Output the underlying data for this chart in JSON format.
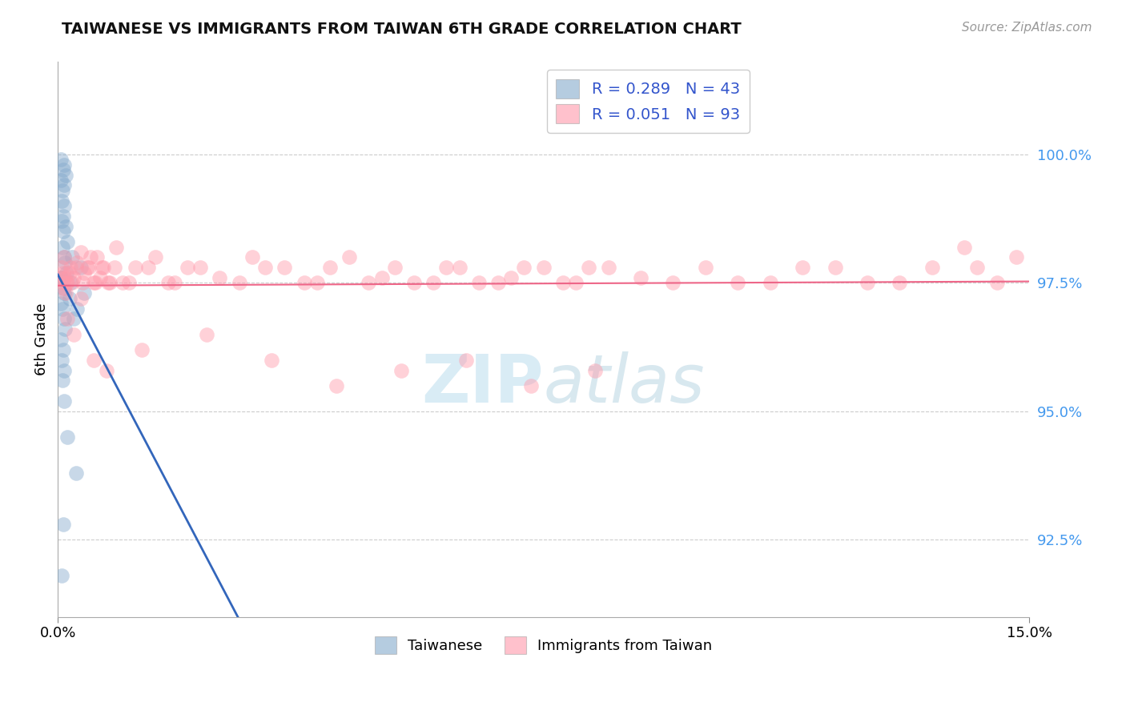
{
  "title": "TAIWANESE VS IMMIGRANTS FROM TAIWAN 6TH GRADE CORRELATION CHART",
  "source": "Source: ZipAtlas.com",
  "ylabel": "6th Grade",
  "xlim": [
    0.0,
    15.0
  ],
  "ylim": [
    91.0,
    101.8
  ],
  "yticks": [
    92.5,
    95.0,
    97.5,
    100.0
  ],
  "ytick_labels": [
    "92.5%",
    "95.0%",
    "97.5%",
    "100.0%"
  ],
  "xticks": [
    0.0,
    15.0
  ],
  "xtick_labels": [
    "0.0%",
    "15.0%"
  ],
  "legend_label1": "Taiwanese",
  "legend_label2": "Immigrants from Taiwan",
  "blue_color": "#85AACC",
  "pink_color": "#FF99AA",
  "blue_line_color": "#3366BB",
  "pink_line_color": "#EE6688",
  "blue_scatter_x": [
    0.05,
    0.08,
    0.1,
    0.12,
    0.05,
    0.07,
    0.09,
    0.06,
    0.1,
    0.08,
    0.06,
    0.08,
    0.12,
    0.15,
    0.07,
    0.09,
    0.11,
    0.13,
    0.06,
    0.08,
    0.1,
    0.05,
    0.07,
    0.09,
    0.11,
    0.05,
    0.08,
    0.06,
    0.09,
    0.07,
    0.05,
    0.2,
    0.35,
    0.22,
    0.18,
    0.3,
    0.4,
    0.25,
    0.28,
    0.15,
    0.1,
    0.08,
    0.06
  ],
  "blue_scatter_y": [
    99.9,
    99.7,
    99.8,
    99.6,
    99.5,
    99.3,
    99.4,
    99.1,
    99.0,
    98.8,
    98.7,
    98.5,
    98.6,
    98.3,
    98.2,
    98.0,
    97.9,
    97.7,
    97.6,
    97.4,
    97.3,
    97.1,
    97.0,
    96.8,
    96.6,
    96.4,
    96.2,
    96.0,
    95.8,
    95.6,
    97.6,
    97.5,
    97.8,
    98.0,
    97.2,
    97.0,
    97.3,
    96.8,
    93.8,
    94.5,
    95.2,
    92.8,
    91.8
  ],
  "pink_scatter_x": [
    0.05,
    0.07,
    0.1,
    0.12,
    0.15,
    0.08,
    0.06,
    0.09,
    0.11,
    0.13,
    0.2,
    0.25,
    0.3,
    0.35,
    0.4,
    0.45,
    0.5,
    0.55,
    0.6,
    0.65,
    0.7,
    0.8,
    0.9,
    1.0,
    1.2,
    1.5,
    1.8,
    2.0,
    2.5,
    3.0,
    3.5,
    4.0,
    4.5,
    5.0,
    5.5,
    6.0,
    6.5,
    7.0,
    7.5,
    8.0,
    8.5,
    9.0,
    10.0,
    11.0,
    12.0,
    13.0,
    14.0,
    0.18,
    0.22,
    0.28,
    0.38,
    0.48,
    0.58,
    0.68,
    0.78,
    0.88,
    1.1,
    1.4,
    1.7,
    2.2,
    2.8,
    3.2,
    3.8,
    4.2,
    4.8,
    5.2,
    5.8,
    6.2,
    6.8,
    7.2,
    7.8,
    8.2,
    9.5,
    10.5,
    11.5,
    12.5,
    13.5,
    14.5,
    0.15,
    0.25,
    0.35,
    0.55,
    0.75,
    1.3,
    2.3,
    3.3,
    4.3,
    5.3,
    6.3,
    7.3,
    8.3,
    14.2,
    14.8
  ],
  "pink_scatter_y": [
    97.6,
    97.5,
    97.4,
    97.3,
    97.5,
    97.7,
    97.8,
    98.0,
    97.6,
    97.5,
    97.8,
    97.6,
    97.9,
    98.1,
    97.7,
    97.8,
    98.0,
    97.5,
    98.0,
    97.6,
    97.8,
    97.5,
    98.2,
    97.5,
    97.8,
    98.0,
    97.5,
    97.8,
    97.6,
    98.0,
    97.8,
    97.5,
    98.0,
    97.6,
    97.5,
    97.8,
    97.5,
    97.6,
    97.8,
    97.5,
    97.8,
    97.6,
    97.8,
    97.5,
    97.8,
    97.5,
    98.2,
    97.7,
    97.5,
    97.8,
    97.5,
    97.8,
    97.5,
    97.8,
    97.5,
    97.8,
    97.5,
    97.8,
    97.5,
    97.8,
    97.5,
    97.8,
    97.5,
    97.8,
    97.5,
    97.8,
    97.5,
    97.8,
    97.5,
    97.8,
    97.5,
    97.8,
    97.5,
    97.5,
    97.8,
    97.5,
    97.8,
    97.5,
    96.8,
    96.5,
    97.2,
    96.0,
    95.8,
    96.2,
    96.5,
    96.0,
    95.5,
    95.8,
    96.0,
    95.5,
    95.8,
    97.8,
    98.0
  ],
  "watermark_zip": "ZIP",
  "watermark_atlas": "atlas",
  "background_color": "#FFFFFF",
  "grid_color": "#CCCCCC"
}
